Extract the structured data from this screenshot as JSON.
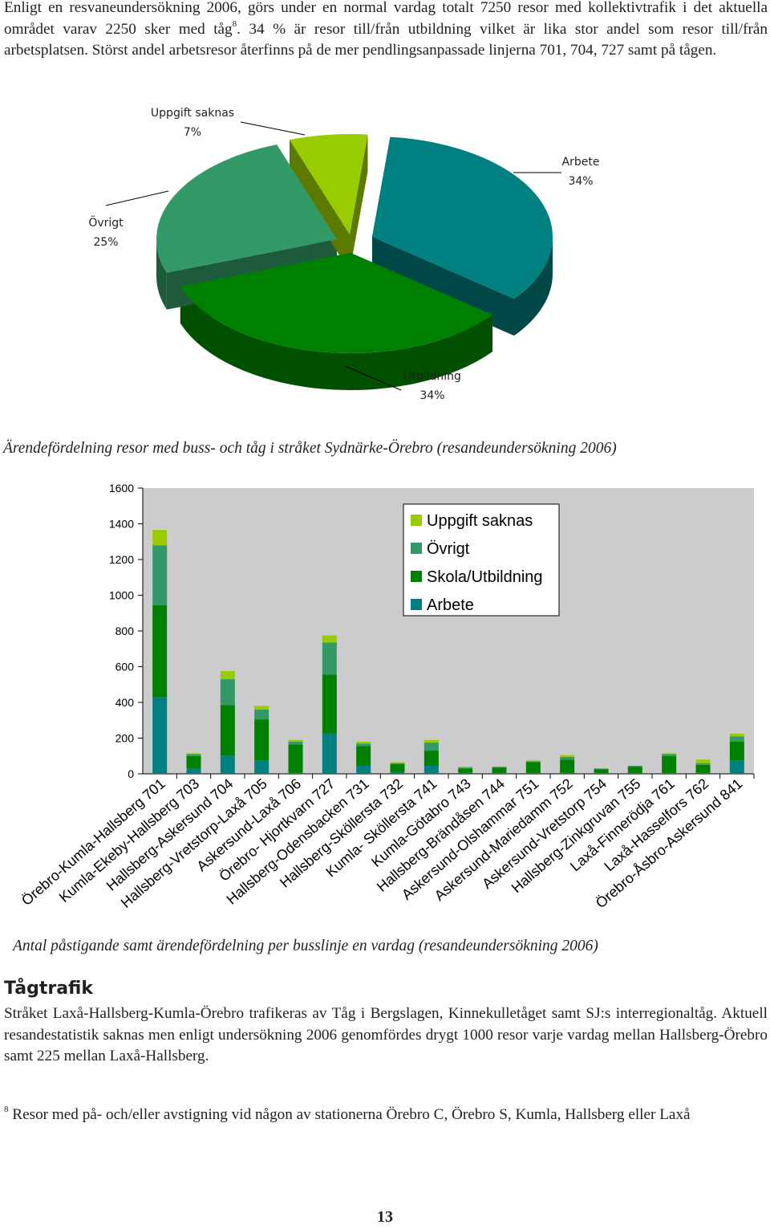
{
  "intro": {
    "before_ref": "Enligt en resvaneundersökning 2006, görs under en normal vardag totalt 7250 resor med kollektivtrafik i det aktuella området varav 2250 sker med tåg",
    "ref": "8",
    "after_ref": ". 34 % är resor till/från utbildning vilket är lika stor andel som resor till/från arbetsplatsen. Störst andel arbetsresor återfinns på de mer pendlingsanpassade linjerna 701, 704, 727 samt på tågen."
  },
  "pie_caption": "Ärendefördelning resor med buss- och tåg i stråket Sydnärke-Örebro (resandeundersökning 2006)",
  "bar_caption": "Antal påstigande samt ärendefördelning  per busslinje en vardag (resandeundersökning 2006)",
  "train": {
    "heading": "Tågtrafik",
    "body": "Stråket Laxå-Hallsberg-Kumla-Örebro trafikeras av Tåg i Bergslagen, Kinnekulletåget samt SJ:s interregionaltåg. Aktuell resandestatistik saknas men enligt undersökning 2006 genomfördes drygt 1000 resor varje vardag mellan Hallsberg-Örebro samt 225 mellan Laxå-Hallsberg."
  },
  "footnote": {
    "ref": "8",
    "text": " Resor med på- och/eller avstigning vid någon av stationerna Örebro C, Örebro S, Kumla, Hallsberg eller Laxå"
  },
  "page_number": "13",
  "chart_data": [
    {
      "type": "pie",
      "title": "",
      "slices": [
        {
          "label": "Arbete",
          "value": 34,
          "display": "34%",
          "color": "#008080",
          "side_color": "#004848"
        },
        {
          "label": "Utbildning",
          "value": 34,
          "display": "34%",
          "color": "#008000",
          "side_color": "#005000"
        },
        {
          "label": "Övrigt",
          "value": 25,
          "display": "25%",
          "color": "#339966",
          "side_color": "#1e5a3c"
        },
        {
          "label": "Uppgift saknas",
          "value": 7,
          "display": "7%",
          "color": "#99cc00",
          "side_color": "#5c7a00"
        }
      ]
    },
    {
      "type": "bar",
      "stacked": true,
      "ylim": [
        0,
        1600
      ],
      "yticks": [
        0,
        200,
        400,
        600,
        800,
        1000,
        1200,
        1400,
        1600
      ],
      "grid": false,
      "legend_position": "top-right",
      "background": "#cccccc",
      "categories": [
        "Örebro-Kumla-Hallsberg 701",
        "Kumla-Ekeby-Hallsberg 703",
        "Hallsberg-Askersund 704",
        "Hallsberg-Vretstorp-Laxå 705",
        "Askersund-Laxå 706",
        "Örebro- Hjortkvarn 727",
        "Hallsberg-Odensbacken 731",
        "Hallsberg-Sköllersta 732",
        "Kumla- Sköllersta 741",
        "Kumla-Götabro 743",
        "Hallsberg-Brändåsen 744",
        "Askersund-Olshammar 751",
        "Askersund-Mariedamm 752",
        "Askersund-Vretstorp 754",
        "Hallsberg-Zinkgruvan 755",
        "Laxå-Finnerödja 761",
        "Laxå-Hasselfors 762",
        "Örebro-Åsbro-Askersund 841"
      ],
      "series": [
        {
          "name": "Arbete",
          "color": "#008080",
          "values": [
            430,
            30,
            100,
            75,
            5,
            225,
            45,
            10,
            45,
            5,
            5,
            5,
            5,
            5,
            5,
            5,
            5,
            75
          ]
        },
        {
          "name": "Skola/Utbildning",
          "color": "#008000",
          "values": [
            515,
            70,
            285,
            230,
            160,
            330,
            110,
            45,
            85,
            25,
            30,
            60,
            75,
            20,
            35,
            95,
            45,
            105
          ]
        },
        {
          "name": "Övrigt",
          "color": "#339966",
          "values": [
            335,
            10,
            145,
            55,
            15,
            180,
            15,
            5,
            45,
            5,
            5,
            5,
            15,
            5,
            5,
            10,
            10,
            30
          ]
        },
        {
          "name": "Uppgift saknas",
          "color": "#99cc00",
          "values": [
            85,
            5,
            45,
            20,
            10,
            40,
            10,
            5,
            15,
            5,
            0,
            5,
            10,
            0,
            0,
            5,
            20,
            15
          ]
        }
      ],
      "legend_order": [
        "Uppgift saknas",
        "Övrigt",
        "Skola/Utbildning",
        "Arbete"
      ]
    }
  ]
}
